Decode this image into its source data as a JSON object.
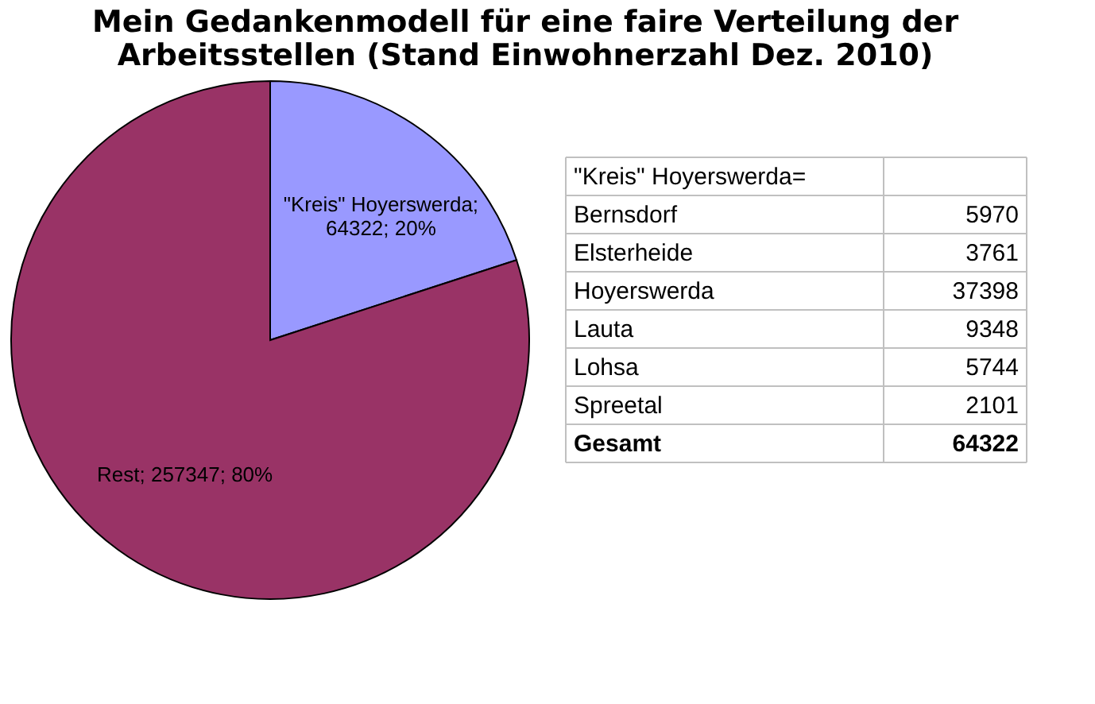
{
  "chart_data": [
    {
      "type": "pie",
      "title": "Mein Gedankenmodell für eine faire Verteilung der Arbeitsstellen (Stand Einwohnerzahl Dez. 2010)",
      "categories": [
        null,
        null
      ],
      "values": [
        64322,
        257347
      ],
      "colors": [
        "#9999ff",
        "#993366"
      ],
      "value_labels": [
        "\"Kreis\" Hoyerswerda; 64322; 20%",
        "Rest; 257347; 80%"
      ],
      "legend": false
    },
    {
      "type": "other",
      "annotations": [
        "\"Kreis\" Hoyerswerda=",
        "Bernsdorf",
        "5970",
        "Elsterheide",
        "3761",
        "Hoyerswerda",
        "37398",
        "Lauta",
        "9348",
        "Lohsa",
        "5744",
        "Spreetal",
        "2101",
        "Gesamt",
        "64322"
      ]
    }
  ]
}
